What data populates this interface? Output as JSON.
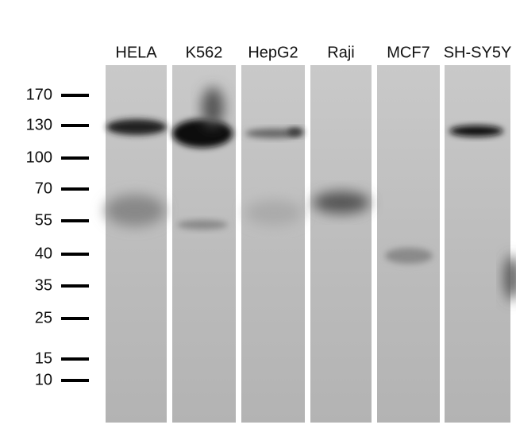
{
  "lanes": [
    "HELA",
    "K562",
    "HepG2",
    "Raji",
    "MCF7",
    "SH-SY5Y"
  ],
  "markers": [
    "170",
    "130",
    "100",
    "70",
    "55",
    "40",
    "35",
    "25",
    "15",
    "10"
  ]
}
